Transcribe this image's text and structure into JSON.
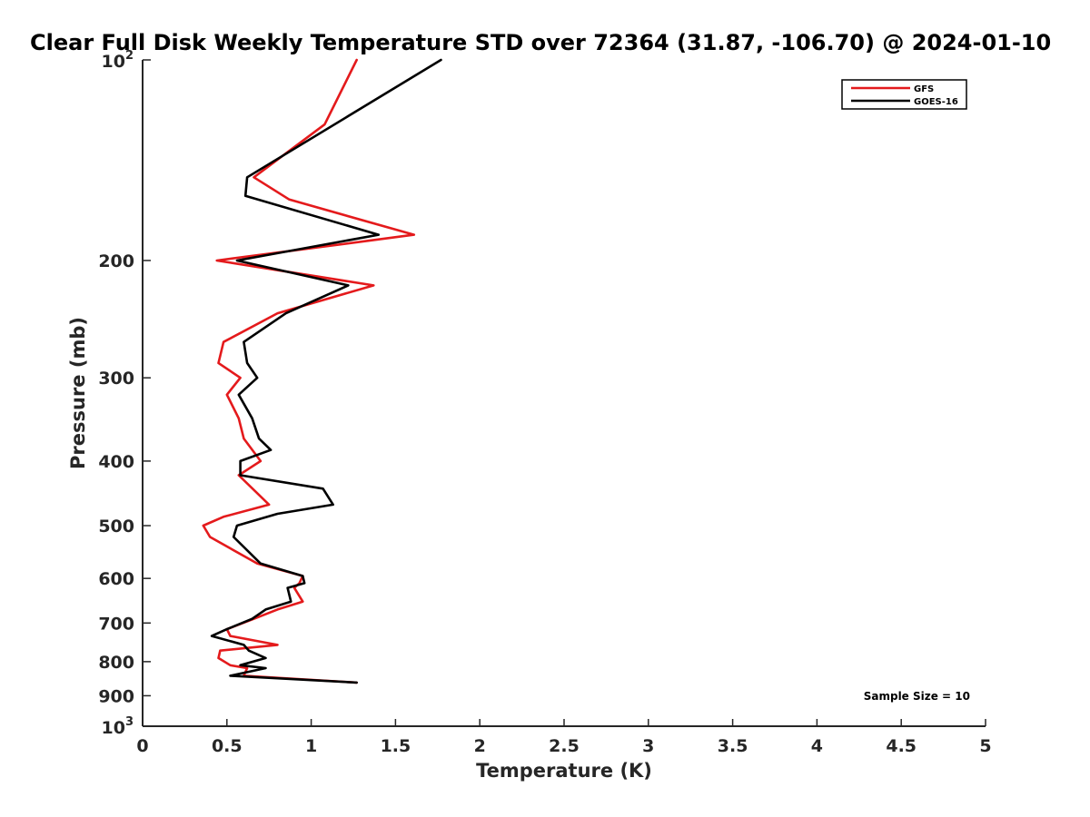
{
  "chart_data": {
    "type": "line",
    "title": "Clear Full Disk Weekly Temperature STD over 72364 (31.87, -106.70) @ 2024-01-10",
    "xlabel": "Temperature (K)",
    "ylabel": "Pressure (mb)",
    "xlim": [
      0,
      5
    ],
    "ylim": [
      100,
      1000
    ],
    "y_scale": "log",
    "y_reversed": true,
    "x_ticks": [
      "0",
      "0.5",
      "1",
      "1.5",
      "2",
      "2.5",
      "3",
      "3.5",
      "4",
      "4.5",
      "5"
    ],
    "y_ticks": [
      {
        "value": 100,
        "label": "10",
        "exp": "2"
      },
      {
        "value": 200,
        "label": "200",
        "exp": ""
      },
      {
        "value": 300,
        "label": "300",
        "exp": ""
      },
      {
        "value": 400,
        "label": "400",
        "exp": ""
      },
      {
        "value": 500,
        "label": "500",
        "exp": ""
      },
      {
        "value": 600,
        "label": "600",
        "exp": ""
      },
      {
        "value": 700,
        "label": "700",
        "exp": ""
      },
      {
        "value": 800,
        "label": "800",
        "exp": ""
      },
      {
        "value": 900,
        "label": "900",
        "exp": ""
      },
      {
        "value": 1000,
        "label": "10",
        "exp": "3"
      }
    ],
    "legend_position": "top-right",
    "annotation": "Sample Size = 10",
    "series": [
      {
        "name": "GFS",
        "color": "#e41a1c",
        "points": [
          [
            1.27,
            100
          ],
          [
            1.08,
            125
          ],
          [
            0.66,
            150
          ],
          [
            0.87,
            162
          ],
          [
            1.61,
            183
          ],
          [
            0.44,
            200
          ],
          [
            1.37,
            218
          ],
          [
            0.8,
            240
          ],
          [
            0.48,
            265
          ],
          [
            0.45,
            285
          ],
          [
            0.58,
            300
          ],
          [
            0.5,
            318
          ],
          [
            0.57,
            345
          ],
          [
            0.6,
            370
          ],
          [
            0.7,
            400
          ],
          [
            0.57,
            420
          ],
          [
            0.75,
            465
          ],
          [
            0.48,
            485
          ],
          [
            0.36,
            500
          ],
          [
            0.4,
            520
          ],
          [
            0.68,
            570
          ],
          [
            0.95,
            595
          ],
          [
            0.93,
            610
          ],
          [
            0.9,
            620
          ],
          [
            0.95,
            650
          ],
          [
            0.8,
            668
          ],
          [
            0.66,
            690
          ],
          [
            0.5,
            715
          ],
          [
            0.52,
            732
          ],
          [
            0.8,
            755
          ],
          [
            0.46,
            770
          ],
          [
            0.45,
            790
          ],
          [
            0.52,
            810
          ],
          [
            0.62,
            818
          ],
          [
            0.6,
            840
          ],
          [
            1.27,
            860
          ]
        ]
      },
      {
        "name": "GOES-16",
        "color": "#000000",
        "points": [
          [
            1.77,
            100
          ],
          [
            0.62,
            150
          ],
          [
            0.61,
            160
          ],
          [
            1.4,
            183
          ],
          [
            0.56,
            200
          ],
          [
            1.22,
            218
          ],
          [
            0.85,
            240
          ],
          [
            0.6,
            265
          ],
          [
            0.62,
            285
          ],
          [
            0.68,
            300
          ],
          [
            0.57,
            318
          ],
          [
            0.65,
            345
          ],
          [
            0.69,
            370
          ],
          [
            0.76,
            385
          ],
          [
            0.58,
            400
          ],
          [
            0.58,
            420
          ],
          [
            1.07,
            440
          ],
          [
            1.13,
            465
          ],
          [
            0.8,
            480
          ],
          [
            0.56,
            500
          ],
          [
            0.54,
            520
          ],
          [
            0.7,
            570
          ],
          [
            0.95,
            595
          ],
          [
            0.96,
            610
          ],
          [
            0.86,
            620
          ],
          [
            0.88,
            650
          ],
          [
            0.73,
            668
          ],
          [
            0.65,
            690
          ],
          [
            0.5,
            715
          ],
          [
            0.41,
            732
          ],
          [
            0.6,
            755
          ],
          [
            0.63,
            770
          ],
          [
            0.73,
            790
          ],
          [
            0.58,
            810
          ],
          [
            0.73,
            818
          ],
          [
            0.52,
            840
          ],
          [
            1.27,
            860
          ]
        ]
      }
    ]
  }
}
